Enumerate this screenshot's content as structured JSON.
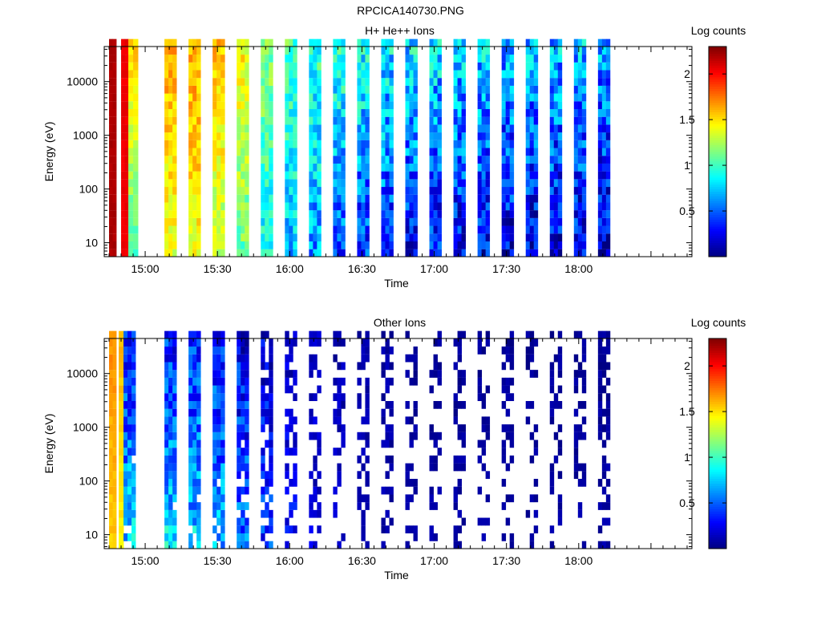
{
  "figure_title": "RPCICA140730.PNG",
  "colors": {
    "colormap": [
      "#00007f",
      "#0000ff",
      "#0080ff",
      "#00ffff",
      "#80ff80",
      "#ffff00",
      "#ff8000",
      "#ff0000",
      "#7f0000"
    ],
    "missing": "#ffffff"
  },
  "chart_data": [
    {
      "type": "heatmap",
      "title": "H+ He++ Ions",
      "xlabel": "Time",
      "ylabel": "Energy (eV)",
      "colorbar_label": "Log counts",
      "colorbar_range": [
        0,
        2.3
      ],
      "colorbar_ticks": [
        {
          "value": 0.5,
          "label": "0.5"
        },
        {
          "value": 1,
          "label": "1"
        },
        {
          "value": 1.5,
          "label": "1.5"
        },
        {
          "value": 2,
          "label": "2"
        }
      ],
      "y_scale": "log",
      "ylim": [
        5.5,
        45000
      ],
      "y_ticks": [
        {
          "value": 10,
          "label": "10"
        },
        {
          "value": 100,
          "label": "100"
        },
        {
          "value": 1000,
          "label": "1000"
        },
        {
          "value": 10000,
          "label": "10000"
        }
      ],
      "xlim": [
        "14:43",
        "18:47"
      ],
      "x_ticks": [
        "15:00",
        "15:30",
        "16:00",
        "16:30",
        "17:00",
        "17:30",
        "18:00"
      ],
      "energy_bins": 28,
      "data_blocks": [
        {
          "start": "14:45",
          "end": "14:48",
          "levels": [
            2.2,
            2.2
          ],
          "jitter": 0.03
        },
        {
          "start": "14:50",
          "end": "14:53",
          "levels": [
            2.05,
            2.05
          ],
          "jitter": 0.03
        },
        {
          "start": "14:53",
          "end": "14:57",
          "levels": [
            1.05,
            1.55
          ],
          "jitter": 0.12
        },
        {
          "start": "15:08",
          "end": "15:13",
          "levels": [
            1.35,
            1.65
          ],
          "jitter": 0.15
        },
        {
          "start": "15:18",
          "end": "15:23",
          "levels": [
            1.4,
            1.65
          ],
          "jitter": 0.15
        },
        {
          "start": "15:28",
          "end": "15:33",
          "levels": [
            1.25,
            1.6
          ],
          "jitter": 0.15
        },
        {
          "start": "15:38",
          "end": "15:43",
          "levels": [
            1.1,
            1.45
          ],
          "jitter": 0.18
        },
        {
          "start": "15:48",
          "end": "15:53",
          "levels": [
            0.85,
            1.2
          ],
          "jitter": 0.2
        },
        {
          "start": "15:58",
          "end": "16:03",
          "levels": [
            0.7,
            1.05
          ],
          "jitter": 0.22
        },
        {
          "start": "16:08",
          "end": "16:13",
          "levels": [
            0.6,
            1.0
          ],
          "jitter": 0.25
        },
        {
          "start": "16:18",
          "end": "16:23",
          "levels": [
            0.45,
            0.95
          ],
          "jitter": 0.25
        },
        {
          "start": "16:28",
          "end": "16:33",
          "levels": [
            0.4,
            0.9
          ],
          "jitter": 0.28
        },
        {
          "start": "16:38",
          "end": "16:43",
          "levels": [
            0.35,
            0.85
          ],
          "jitter": 0.3
        },
        {
          "start": "16:48",
          "end": "16:53",
          "levels": [
            0.3,
            0.8
          ],
          "jitter": 0.3
        },
        {
          "start": "16:58",
          "end": "17:03",
          "levels": [
            0.3,
            0.8
          ],
          "jitter": 0.3
        },
        {
          "start": "17:08",
          "end": "17:13",
          "levels": [
            0.25,
            0.75
          ],
          "jitter": 0.3
        },
        {
          "start": "17:18",
          "end": "17:23",
          "levels": [
            0.25,
            0.75
          ],
          "jitter": 0.3
        },
        {
          "start": "17:28",
          "end": "17:33",
          "levels": [
            0.2,
            0.7
          ],
          "jitter": 0.3
        },
        {
          "start": "17:38",
          "end": "17:43",
          "levels": [
            0.2,
            0.7
          ],
          "jitter": 0.3
        },
        {
          "start": "17:48",
          "end": "17:53",
          "levels": [
            0.2,
            0.7
          ],
          "jitter": 0.3
        },
        {
          "start": "17:58",
          "end": "18:03",
          "levels": [
            0.2,
            0.7
          ],
          "jitter": 0.3
        },
        {
          "start": "18:08",
          "end": "18:13",
          "levels": [
            0.15,
            0.65
          ],
          "jitter": 0.3
        }
      ]
    },
    {
      "type": "heatmap",
      "title": "Other Ions",
      "xlabel": "Time",
      "ylabel": "Energy (eV)",
      "colorbar_label": "Log counts",
      "colorbar_range": [
        0,
        2.3
      ],
      "colorbar_ticks": [
        {
          "value": 0.5,
          "label": "0.5"
        },
        {
          "value": 1,
          "label": "1"
        },
        {
          "value": 1.5,
          "label": "1.5"
        },
        {
          "value": 2,
          "label": "2"
        }
      ],
      "y_scale": "log",
      "ylim": [
        5.5,
        45000
      ],
      "y_ticks": [
        {
          "value": 10,
          "label": "10"
        },
        {
          "value": 100,
          "label": "100"
        },
        {
          "value": 1000,
          "label": "1000"
        },
        {
          "value": 10000,
          "label": "10000"
        }
      ],
      "xlim": [
        "14:43",
        "18:47"
      ],
      "x_ticks": [
        "15:00",
        "15:30",
        "16:00",
        "16:30",
        "17:00",
        "17:30",
        "18:00"
      ],
      "energy_bins": 28,
      "data_blocks": [
        {
          "start": "14:45",
          "end": "14:48",
          "levels": [
            1.55,
            1.7
          ],
          "jitter": 0.05
        },
        {
          "start": "14:49",
          "end": "14:51",
          "levels": [
            1.45,
            1.6
          ],
          "jitter": 0.05
        },
        {
          "start": "14:51",
          "end": "14:56",
          "levels": [
            0.75,
            0.3
          ],
          "jitter": 0.25,
          "fill": 0.8
        },
        {
          "start": "15:08",
          "end": "15:13",
          "levels": [
            0.8,
            0.35
          ],
          "jitter": 0.25,
          "fill": 0.85
        },
        {
          "start": "15:18",
          "end": "15:23",
          "levels": [
            0.75,
            0.35
          ],
          "jitter": 0.25,
          "fill": 0.85
        },
        {
          "start": "15:28",
          "end": "15:33",
          "levels": [
            0.7,
            0.3
          ],
          "jitter": 0.25,
          "fill": 0.8
        },
        {
          "start": "15:38",
          "end": "15:43",
          "levels": [
            0.55,
            0.25
          ],
          "jitter": 0.25,
          "fill": 0.7
        },
        {
          "start": "15:48",
          "end": "15:53",
          "levels": [
            0.4,
            0.2
          ],
          "jitter": 0.2,
          "fill": 0.55
        },
        {
          "start": "15:58",
          "end": "16:03",
          "levels": [
            0.3,
            0.15
          ],
          "jitter": 0.15,
          "fill": 0.45
        },
        {
          "start": "16:08",
          "end": "16:13",
          "levels": [
            0.2,
            0.12
          ],
          "jitter": 0.1,
          "fill": 0.38
        },
        {
          "start": "16:18",
          "end": "16:23",
          "levels": [
            0.15,
            0.1
          ],
          "jitter": 0.08,
          "fill": 0.33
        },
        {
          "start": "16:28",
          "end": "16:33",
          "levels": [
            0.12,
            0.08
          ],
          "jitter": 0.06,
          "fill": 0.3
        },
        {
          "start": "16:38",
          "end": "16:43",
          "levels": [
            0.1,
            0.08
          ],
          "jitter": 0.06,
          "fill": 0.27
        },
        {
          "start": "16:48",
          "end": "16:53",
          "levels": [
            0.1,
            0.05
          ],
          "jitter": 0.05,
          "fill": 0.25
        },
        {
          "start": "16:58",
          "end": "17:03",
          "levels": [
            0.1,
            0.05
          ],
          "jitter": 0.05,
          "fill": 0.24
        },
        {
          "start": "17:08",
          "end": "17:13",
          "levels": [
            0.08,
            0.05
          ],
          "jitter": 0.05,
          "fill": 0.22
        },
        {
          "start": "17:18",
          "end": "17:23",
          "levels": [
            0.08,
            0.05
          ],
          "jitter": 0.05,
          "fill": 0.22
        },
        {
          "start": "17:28",
          "end": "17:33",
          "levels": [
            0.08,
            0.05
          ],
          "jitter": 0.05,
          "fill": 0.2
        },
        {
          "start": "17:38",
          "end": "17:43",
          "levels": [
            0.08,
            0.05
          ],
          "jitter": 0.05,
          "fill": 0.2
        },
        {
          "start": "17:48",
          "end": "17:53",
          "levels": [
            0.08,
            0.05
          ],
          "jitter": 0.05,
          "fill": 0.2
        },
        {
          "start": "17:58",
          "end": "18:03",
          "levels": [
            0.08,
            0.05
          ],
          "jitter": 0.05,
          "fill": 0.25
        },
        {
          "start": "18:08",
          "end": "18:13",
          "levels": [
            0.08,
            0.05
          ],
          "jitter": 0.05,
          "fill": 0.3
        }
      ]
    }
  ]
}
